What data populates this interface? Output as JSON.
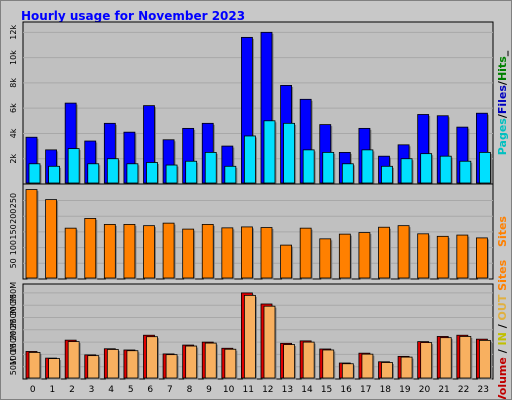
{
  "chart_data": {
    "type": "bar",
    "title": "Hourly usage for November 2023",
    "categories": [
      "0",
      "1",
      "2",
      "3",
      "4",
      "5",
      "6",
      "7",
      "8",
      "9",
      "10",
      "11",
      "12",
      "13",
      "14",
      "15",
      "16",
      "17",
      "18",
      "19",
      "20",
      "21",
      "22",
      "23"
    ],
    "panels": [
      {
        "ticks": [
          {
            "value": 2000,
            "label": "2k"
          },
          {
            "value": 4000,
            "label": "4k"
          },
          {
            "value": 6000,
            "label": "6k"
          },
          {
            "value": 8000,
            "label": "8k"
          },
          {
            "value": 10000,
            "label": "10k"
          },
          {
            "value": 12000,
            "label": "12k"
          }
        ],
        "ylim": [
          0,
          12500
        ],
        "legend": [
          {
            "label": "Pages",
            "color": "#00c0c0"
          },
          {
            "label": "/",
            "color": "#000000"
          },
          {
            "label": "Files",
            "color": "#0000c0"
          },
          {
            "label": "/",
            "color": "#000000"
          },
          {
            "label": "Hits",
            "color": "#008000"
          },
          {
            "label": "_",
            "color": "#000000"
          }
        ],
        "series": [
          {
            "values": [
              3700,
              2700,
              6400,
              3400,
              4800,
              4100,
              6200,
              3500,
              4400,
              4800,
              3000,
              11600,
              12000,
              7800,
              6700,
              4700,
              2500,
              4400,
              2200,
              3100,
              5500,
              5400,
              4500,
              5600
            ],
            "color": "#0000ff",
            "offset": 0
          },
          {
            "values": [
              1600,
              1400,
              2800,
              1600,
              2000,
              1600,
              1700,
              1500,
              1800,
              2500,
              1400,
              3800,
              5000,
              4800,
              2700,
              2500,
              1600,
              2700,
              1400,
              2000,
              2400,
              2200,
              1800,
              2500
            ],
            "color": "#00e0ff",
            "offset": 1
          }
        ]
      },
      {
        "ticks": [
          {
            "value": 50,
            "label": "50"
          },
          {
            "value": 100,
            "label": "100"
          },
          {
            "value": 150,
            "label": "150"
          },
          {
            "value": 200,
            "label": "200"
          },
          {
            "value": 250,
            "label": "250"
          }
        ],
        "ylim": [
          0,
          290
        ],
        "legend": [
          {
            "label": "Sites",
            "color": "#ff8000"
          }
        ],
        "series": [
          {
            "values": [
              285,
              253,
              162,
              193,
              174,
              174,
              170,
              178,
              159,
              174,
              163,
              166,
              164,
              108,
              162,
              128,
              143,
              148,
              165,
              170,
              144,
              136,
              140,
              131
            ],
            "color": "#ff8000",
            "offset": 0
          }
        ]
      },
      {
        "ticks": [
          {
            "value": 50,
            "label": "50M"
          },
          {
            "value": 100,
            "label": "100M"
          },
          {
            "value": 150,
            "label": "150M"
          },
          {
            "value": 200,
            "label": "200M"
          },
          {
            "value": 250,
            "label": "250M"
          },
          {
            "value": 300,
            "label": "300M"
          },
          {
            "value": 350,
            "label": "350M"
          }
        ],
        "ylim": [
          0,
          370
        ],
        "legend": [
          {
            "label": "Volume",
            "color": "#c00000"
          },
          {
            "label": " / ",
            "color": "#000000"
          },
          {
            "label": "IN",
            "color": "#c0c000"
          },
          {
            "label": " / ",
            "color": "#000000"
          },
          {
            "label": "OUT",
            "color": "#e0b040"
          },
          {
            "label": " ",
            "color": "#000000"
          },
          {
            "label": "Sites",
            "color": "#ff8000"
          }
        ],
        "series": [
          {
            "values": [
              112,
              85,
              158,
              98,
              123,
              118,
              178,
              102,
              138,
              150,
              125,
              350,
              305,
              145,
              155,
              122,
              65,
              105,
              70,
              92,
              152,
              173,
              178,
              162
            ],
            "color": "#e00000",
            "offset": 0
          },
          {
            "values": [
              108,
              83,
              152,
              95,
              120,
              115,
              172,
              99,
              134,
              146,
              121,
              340,
              296,
              140,
              150,
              118,
              62,
              101,
              67,
              89,
              148,
              168,
              173,
              157
            ],
            "color": "#f8b060",
            "offset": 1
          }
        ]
      }
    ]
  }
}
